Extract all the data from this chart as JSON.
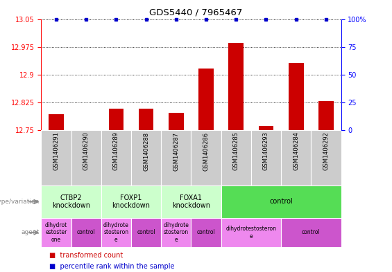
{
  "title": "GDS5440 / 7965467",
  "samples": [
    "GSM1406291",
    "GSM1406290",
    "GSM1406289",
    "GSM1406288",
    "GSM1406287",
    "GSM1406286",
    "GSM1406285",
    "GSM1406293",
    "GSM1406284",
    "GSM1406292"
  ],
  "transformed_counts": [
    12.793,
    12.75,
    12.808,
    12.809,
    12.797,
    12.916,
    12.987,
    12.762,
    12.932,
    12.829
  ],
  "percentile_ranks": [
    100,
    100,
    100,
    100,
    100,
    100,
    100,
    100,
    100,
    100
  ],
  "ylim_left": [
    12.75,
    13.05
  ],
  "ylim_right": [
    0,
    100
  ],
  "yticks_left": [
    12.75,
    12.825,
    12.9,
    12.975,
    13.05
  ],
  "yticks_right": [
    0,
    25,
    50,
    75,
    100
  ],
  "genotype_groups": [
    {
      "label": "CTBP2\nknockdown",
      "start": 0,
      "end": 2,
      "color": "#ccffcc"
    },
    {
      "label": "FOXP1\nknockdown",
      "start": 2,
      "end": 4,
      "color": "#ccffcc"
    },
    {
      "label": "FOXA1\nknockdown",
      "start": 4,
      "end": 6,
      "color": "#ccffcc"
    },
    {
      "label": "control",
      "start": 6,
      "end": 10,
      "color": "#55dd55"
    }
  ],
  "agent_groups": [
    {
      "label": "dihydrot\nestoster\none",
      "start": 0,
      "end": 1,
      "color": "#ee88ee"
    },
    {
      "label": "control",
      "start": 1,
      "end": 2,
      "color": "#cc55cc"
    },
    {
      "label": "dihydrote\nstosteron\ne",
      "start": 2,
      "end": 3,
      "color": "#ee88ee"
    },
    {
      "label": "control",
      "start": 3,
      "end": 4,
      "color": "#cc55cc"
    },
    {
      "label": "dihydrote\nstosteron\ne",
      "start": 4,
      "end": 5,
      "color": "#ee88ee"
    },
    {
      "label": "control",
      "start": 5,
      "end": 6,
      "color": "#cc55cc"
    },
    {
      "label": "dihydrotestosteron\ne",
      "start": 6,
      "end": 8,
      "color": "#ee88ee"
    },
    {
      "label": "control",
      "start": 8,
      "end": 10,
      "color": "#cc55cc"
    }
  ],
  "bar_color": "#cc0000",
  "dot_color": "#0000cc",
  "bar_width": 0.5
}
